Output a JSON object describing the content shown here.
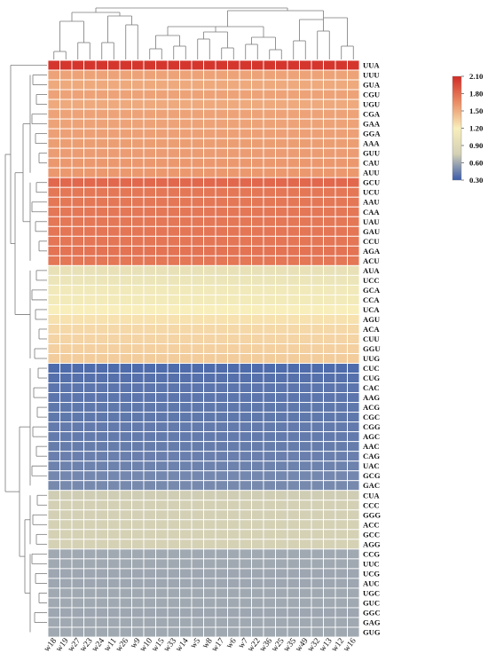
{
  "chart_data": {
    "type": "heatmap",
    "title": "",
    "xlabel": "",
    "ylabel": "",
    "columns": [
      "w18",
      "w19",
      "w27",
      "w23",
      "w24",
      "w11",
      "w26",
      "w9",
      "w10",
      "w15",
      "w33",
      "w14",
      "w5",
      "w8",
      "w17",
      "w6",
      "w7",
      "w22",
      "w36",
      "w25",
      "w35",
      "w49",
      "w32",
      "w13",
      "w12",
      "w16"
    ],
    "rows": [
      "UUA",
      "UUU",
      "GUA",
      "CGU",
      "UGU",
      "CGA",
      "GAA",
      "GGA",
      "AAA",
      "GUU",
      "CAU",
      "AUU",
      "GCU",
      "UCU",
      "AAU",
      "CAA",
      "UAU",
      "GAU",
      "CCU",
      "AGA",
      "ACU",
      "AUA",
      "UCC",
      "GCA",
      "CCA",
      "UCA",
      "AGU",
      "ACA",
      "CUU",
      "GGU",
      "UUG",
      "CUC",
      "CUG",
      "CAC",
      "AAG",
      "ACG",
      "CGC",
      "CGG",
      "AGC",
      "AAC",
      "CAG",
      "UAC",
      "GCG",
      "GAC",
      "CUA",
      "CCC",
      "GGG",
      "ACC",
      "GCC",
      "AGG",
      "CCG",
      "UUC",
      "UCG",
      "AUC",
      "UGC",
      "GUC",
      "GGC",
      "GAG",
      "GUG"
    ],
    "row_values": [
      2.05,
      1.55,
      1.52,
      1.55,
      1.52,
      1.55,
      1.55,
      1.56,
      1.57,
      1.58,
      1.6,
      1.6,
      1.82,
      1.75,
      1.75,
      1.75,
      1.75,
      1.76,
      1.76,
      1.77,
      1.75,
      1.0,
      1.06,
      1.12,
      1.14,
      1.2,
      1.26,
      1.3,
      1.32,
      1.34,
      1.36,
      0.36,
      0.38,
      0.4,
      0.4,
      0.41,
      0.41,
      0.42,
      0.42,
      0.43,
      0.44,
      0.45,
      0.47,
      0.48,
      0.74,
      0.75,
      0.75,
      0.76,
      0.77,
      0.77,
      0.6,
      0.6,
      0.59,
      0.59,
      0.6,
      0.6,
      0.59,
      0.6,
      0.6
    ],
    "color_scale": {
      "min": 0.3,
      "max": 2.1,
      "ticks": [
        "2.10",
        "1.80",
        "1.50",
        "1.20",
        "0.90",
        "0.60",
        "0.30"
      ],
      "colors": [
        "#3a5ba9",
        "#d3d0b5",
        "#f8eebb",
        "#ea8d64",
        "#d12b26"
      ]
    },
    "legend": "right"
  }
}
